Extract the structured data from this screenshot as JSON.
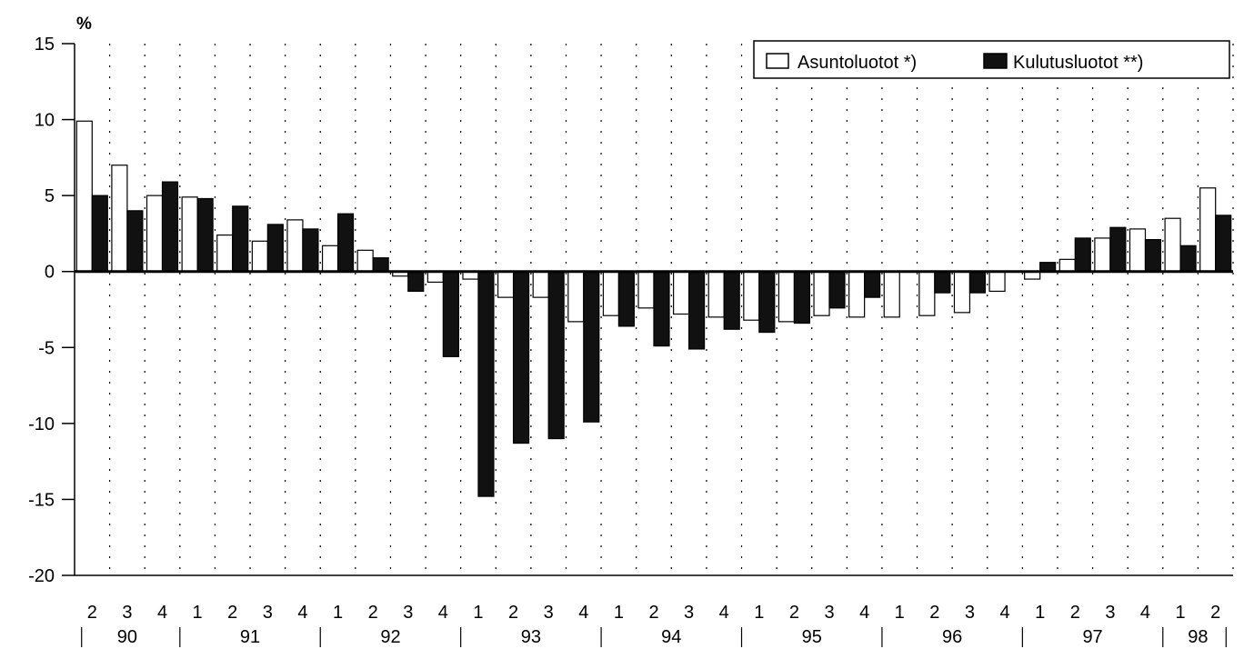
{
  "chart_data": {
    "type": "bar",
    "ylabel": "%",
    "ylim": [
      -20,
      15
    ],
    "yticks": [
      15,
      10,
      5,
      0,
      -5,
      -10,
      -15,
      -20
    ],
    "grid": "vertical-dotted",
    "legend_position": "top-right",
    "quarters": [
      "2",
      "3",
      "4",
      "1",
      "2",
      "3",
      "4",
      "1",
      "2",
      "3",
      "4",
      "1",
      "2",
      "3",
      "4",
      "1",
      "2",
      "3",
      "4",
      "1",
      "2",
      "3",
      "4",
      "1",
      "2",
      "3",
      "4",
      "1",
      "2",
      "3",
      "4",
      "1",
      "2"
    ],
    "years": [
      {
        "label": "90",
        "start": 0,
        "end": 3
      },
      {
        "label": "91",
        "start": 3,
        "end": 7
      },
      {
        "label": "92",
        "start": 7,
        "end": 11
      },
      {
        "label": "93",
        "start": 11,
        "end": 15
      },
      {
        "label": "94",
        "start": 15,
        "end": 19
      },
      {
        "label": "95",
        "start": 19,
        "end": 23
      },
      {
        "label": "96",
        "start": 23,
        "end": 27
      },
      {
        "label": "97",
        "start": 27,
        "end": 31
      },
      {
        "label": "98",
        "start": 31,
        "end": 33
      }
    ],
    "series": [
      {
        "name": "Asuntoluotot *)",
        "color": "#ffffff",
        "values": [
          9.9,
          7.0,
          5.0,
          4.9,
          2.4,
          2.0,
          3.4,
          1.7,
          1.4,
          -0.3,
          -0.7,
          -0.5,
          -1.7,
          -1.7,
          -3.3,
          -2.9,
          -2.4,
          -2.8,
          -3.0,
          -3.2,
          -3.3,
          -2.9,
          -3.0,
          -3.0,
          -2.9,
          -2.7,
          -1.3,
          -0.5,
          0.8,
          2.2,
          2.8,
          3.5,
          5.5
        ]
      },
      {
        "name": "Kulutusluotot **)",
        "color": "#111111",
        "values": [
          5.0,
          4.0,
          5.9,
          4.8,
          4.3,
          3.1,
          2.8,
          3.8,
          0.9,
          -1.3,
          -5.6,
          -14.8,
          -11.3,
          -11.0,
          -9.9,
          -3.6,
          -4.9,
          -5.1,
          -3.8,
          -4.0,
          -3.4,
          -2.4,
          -1.7,
          0.0,
          -1.4,
          -1.4,
          0.0,
          0.6,
          2.2,
          2.9,
          2.1,
          1.7,
          3.7
        ]
      }
    ]
  }
}
